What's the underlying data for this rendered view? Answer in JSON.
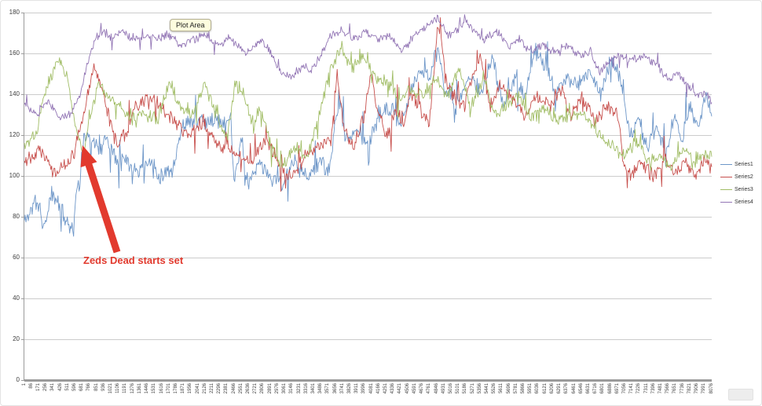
{
  "tooltip": {
    "label": "Plot Area"
  },
  "annotation": {
    "text": "Zeds Dead starts set",
    "color": "#e23a2e"
  },
  "axis_color": "#9b9b9b",
  "grid_color": "#cccccc",
  "chart_data": {
    "type": "line",
    "title": "",
    "xlabel": "",
    "ylabel": "",
    "ylim": [
      0,
      180
    ],
    "yticks": [
      0,
      20,
      40,
      60,
      80,
      100,
      120,
      140,
      160,
      180
    ],
    "xlim": [
      1,
      8076
    ],
    "xticks": [
      "1",
      "86",
      "171",
      "256",
      "341",
      "426",
      "511",
      "596",
      "681",
      "766",
      "851",
      "936",
      "1021",
      "1106",
      "1191",
      "1276",
      "1361",
      "1446",
      "1531",
      "1616",
      "1701",
      "1786",
      "1871",
      "1956",
      "2041",
      "2126",
      "2211",
      "2296",
      "2381",
      "2466",
      "2551",
      "2636",
      "2721",
      "2806",
      "2891",
      "2976",
      "3061",
      "3146",
      "3231",
      "3316",
      "3401",
      "3486",
      "3571",
      "3656",
      "3741",
      "3826",
      "3911",
      "3996",
      "4081",
      "4166",
      "4251",
      "4336",
      "4421",
      "4506",
      "4591",
      "4676",
      "4761",
      "4846",
      "4931",
      "5016",
      "5101",
      "5186",
      "5271",
      "5356",
      "5441",
      "5526",
      "5611",
      "5696",
      "5781",
      "5866",
      "5951",
      "6036",
      "6121",
      "6206",
      "6291",
      "6376",
      "6461",
      "6546",
      "6631",
      "6716",
      "6801",
      "6886",
      "6971",
      "7056",
      "7141",
      "7226",
      "7311",
      "7396",
      "7481",
      "7566",
      "7651",
      "7736",
      "7821",
      "7906",
      "7991",
      "8076"
    ],
    "grid": "horizontal",
    "legend_position": "right",
    "series": [
      {
        "name": "Series1",
        "color": "#6d96c8",
        "noise": 5,
        "spike": 13,
        "spike_p": 0.08,
        "seed": 11,
        "keypoints": [
          [
            1,
            78
          ],
          [
            139,
            88
          ],
          [
            232,
            75
          ],
          [
            324,
            92
          ],
          [
            416,
            85
          ],
          [
            509,
            78
          ],
          [
            582,
            73
          ],
          [
            619,
            98
          ],
          [
            656,
            93
          ],
          [
            675,
            113
          ],
          [
            702,
            121
          ],
          [
            785,
            117
          ],
          [
            878,
            112
          ],
          [
            970,
            119
          ],
          [
            1062,
            110
          ],
          [
            1201,
            107
          ],
          [
            1339,
            103
          ],
          [
            1478,
            107
          ],
          [
            1616,
            100
          ],
          [
            1754,
            104
          ],
          [
            1865,
            126
          ],
          [
            2197,
            127
          ],
          [
            2428,
            127
          ],
          [
            2465,
            98
          ],
          [
            2539,
            116
          ],
          [
            2631,
            96
          ],
          [
            2770,
            106
          ],
          [
            2908,
            99
          ],
          [
            3046,
            96
          ],
          [
            3185,
            107
          ],
          [
            3323,
            99
          ],
          [
            3462,
            107
          ],
          [
            3582,
            102
          ],
          [
            3692,
            138
          ],
          [
            3803,
            117
          ],
          [
            3923,
            124
          ],
          [
            4043,
            114
          ],
          [
            4172,
            129
          ],
          [
            4311,
            133
          ],
          [
            4412,
            124
          ],
          [
            4523,
            139
          ],
          [
            4634,
            152
          ],
          [
            4754,
            148
          ],
          [
            4864,
            162
          ],
          [
            4957,
            139
          ],
          [
            5077,
            134
          ],
          [
            5243,
            149
          ],
          [
            5372,
            139
          ],
          [
            5492,
            158
          ],
          [
            5631,
            134
          ],
          [
            5769,
            148
          ],
          [
            5880,
            139
          ],
          [
            6000,
            161
          ],
          [
            6138,
            153
          ],
          [
            6240,
            139
          ],
          [
            6369,
            149
          ],
          [
            6507,
            144
          ],
          [
            6646,
            153
          ],
          [
            6766,
            139
          ],
          [
            6877,
            156
          ],
          [
            6997,
            149
          ],
          [
            7107,
            119
          ],
          [
            7218,
            129
          ],
          [
            7310,
            114
          ],
          [
            7430,
            124
          ],
          [
            7541,
            110
          ],
          [
            7633,
            129
          ],
          [
            7726,
            119
          ],
          [
            7818,
            133
          ],
          [
            7919,
            124
          ],
          [
            8002,
            138
          ],
          [
            8076,
            132
          ]
        ]
      },
      {
        "name": "Series2",
        "color": "#c74f4c",
        "noise": 4.5,
        "spike": 11,
        "spike_p": 0.07,
        "seed": 22,
        "keypoints": [
          [
            1,
            108
          ],
          [
            186,
            114
          ],
          [
            370,
            100
          ],
          [
            555,
            110
          ],
          [
            647,
            120
          ],
          [
            739,
            140
          ],
          [
            832,
            154
          ],
          [
            924,
            140
          ],
          [
            1016,
            125
          ],
          [
            1108,
            114
          ],
          [
            1201,
            122
          ],
          [
            1311,
            135
          ],
          [
            1431,
            138
          ],
          [
            1570,
            135
          ],
          [
            1754,
            127
          ],
          [
            1939,
            119
          ],
          [
            2105,
            127
          ],
          [
            2290,
            114
          ],
          [
            2474,
            111
          ],
          [
            2659,
            107
          ],
          [
            2843,
            117
          ],
          [
            3028,
            104
          ],
          [
            3166,
            100
          ],
          [
            3323,
            111
          ],
          [
            3462,
            114
          ],
          [
            3600,
            117
          ],
          [
            3674,
            152
          ],
          [
            3748,
            124
          ],
          [
            3877,
            114
          ],
          [
            3988,
            129
          ],
          [
            4071,
            152
          ],
          [
            4163,
            129
          ],
          [
            4265,
            119
          ],
          [
            4366,
            134
          ],
          [
            4449,
            124
          ],
          [
            4541,
            139
          ],
          [
            4643,
            134
          ],
          [
            4754,
            124
          ],
          [
            4864,
            176
          ],
          [
            4947,
            148
          ],
          [
            5049,
            139
          ],
          [
            5169,
            134
          ],
          [
            5270,
            149
          ],
          [
            5363,
            158
          ],
          [
            5464,
            134
          ],
          [
            5593,
            144
          ],
          [
            5732,
            139
          ],
          [
            5870,
            129
          ],
          [
            6009,
            139
          ],
          [
            6184,
            134
          ],
          [
            6295,
            144
          ],
          [
            6424,
            129
          ],
          [
            6562,
            139
          ],
          [
            6701,
            127
          ],
          [
            6839,
            134
          ],
          [
            6978,
            129
          ],
          [
            7033,
            107
          ],
          [
            7116,
            100
          ],
          [
            7255,
            107
          ],
          [
            7393,
            100
          ],
          [
            7531,
            109
          ],
          [
            7633,
            101
          ],
          [
            7762,
            107
          ],
          [
            7900,
            100
          ],
          [
            7993,
            109
          ],
          [
            8076,
            103
          ]
        ]
      },
      {
        "name": "Series3",
        "color": "#a1bd66",
        "noise": 4,
        "spike": 9,
        "spike_p": 0.06,
        "seed": 33,
        "keypoints": [
          [
            1,
            115
          ],
          [
            139,
            120
          ],
          [
            259,
            143
          ],
          [
            398,
            158
          ],
          [
            509,
            148
          ],
          [
            601,
            124
          ],
          [
            693,
            112
          ],
          [
            785,
            129
          ],
          [
            878,
            146
          ],
          [
            988,
            139
          ],
          [
            1108,
            134
          ],
          [
            1247,
            127
          ],
          [
            1385,
            131
          ],
          [
            1570,
            127
          ],
          [
            1699,
            146
          ],
          [
            1837,
            134
          ],
          [
            1976,
            129
          ],
          [
            2114,
            146
          ],
          [
            2253,
            129
          ],
          [
            2382,
            119
          ],
          [
            2483,
            146
          ],
          [
            2585,
            139
          ],
          [
            2686,
            124
          ],
          [
            2788,
            134
          ],
          [
            2908,
            112
          ],
          [
            3037,
            104
          ],
          [
            3175,
            114
          ],
          [
            3314,
            109
          ],
          [
            3452,
            127
          ],
          [
            3591,
            152
          ],
          [
            3720,
            163
          ],
          [
            3858,
            153
          ],
          [
            3997,
            158
          ],
          [
            4135,
            148
          ],
          [
            4274,
            146
          ],
          [
            4412,
            137
          ],
          [
            4551,
            143
          ],
          [
            4689,
            139
          ],
          [
            4827,
            148
          ],
          [
            4966,
            139
          ],
          [
            5114,
            153
          ],
          [
            5252,
            134
          ],
          [
            5391,
            148
          ],
          [
            5529,
            129
          ],
          [
            5668,
            134
          ],
          [
            5806,
            139
          ],
          [
            5944,
            129
          ],
          [
            6083,
            134
          ],
          [
            6221,
            129
          ],
          [
            6360,
            127
          ],
          [
            6498,
            131
          ],
          [
            6637,
            127
          ],
          [
            6775,
            119
          ],
          [
            6914,
            114
          ],
          [
            7052,
            109
          ],
          [
            7190,
            117
          ],
          [
            7329,
            107
          ],
          [
            7467,
            111
          ],
          [
            7606,
            104
          ],
          [
            7744,
            114
          ],
          [
            7883,
            107
          ],
          [
            7984,
            111
          ],
          [
            8076,
            109
          ]
        ]
      },
      {
        "name": "Series4",
        "color": "#9376b5",
        "noise": 2.5,
        "spike": 6,
        "spike_p": 0.05,
        "seed": 44,
        "keypoints": [
          [
            1,
            135
          ],
          [
            139,
            130
          ],
          [
            278,
            137
          ],
          [
            416,
            128
          ],
          [
            555,
            131
          ],
          [
            647,
            139
          ],
          [
            739,
            154
          ],
          [
            832,
            167
          ],
          [
            924,
            171
          ],
          [
            1035,
            167
          ],
          [
            1155,
            171
          ],
          [
            1293,
            167
          ],
          [
            1431,
            169
          ],
          [
            1570,
            167
          ],
          [
            1708,
            169
          ],
          [
            1847,
            164
          ],
          [
            1985,
            167
          ],
          [
            2123,
            169
          ],
          [
            2262,
            164
          ],
          [
            2400,
            167
          ],
          [
            2511,
            164
          ],
          [
            2603,
            159
          ],
          [
            2696,
            164
          ],
          [
            2788,
            167
          ],
          [
            2880,
            161
          ],
          [
            3000,
            151
          ],
          [
            3138,
            149
          ],
          [
            3277,
            154
          ],
          [
            3369,
            151
          ],
          [
            3480,
            159
          ],
          [
            3600,
            169
          ],
          [
            3738,
            171
          ],
          [
            3877,
            167
          ],
          [
            4015,
            171
          ],
          [
            4154,
            167
          ],
          [
            4292,
            169
          ],
          [
            4431,
            161
          ],
          [
            4532,
            167
          ],
          [
            4634,
            171
          ],
          [
            4744,
            174
          ],
          [
            4855,
            177
          ],
          [
            4975,
            169
          ],
          [
            5086,
            171
          ],
          [
            5178,
            177
          ],
          [
            5280,
            171
          ],
          [
            5409,
            167
          ],
          [
            5547,
            171
          ],
          [
            5686,
            164
          ],
          [
            5824,
            167
          ],
          [
            5963,
            161
          ],
          [
            6101,
            164
          ],
          [
            6240,
            161
          ],
          [
            6378,
            164
          ],
          [
            6517,
            159
          ],
          [
            6655,
            161
          ],
          [
            6757,
            151
          ],
          [
            6886,
            157
          ],
          [
            7015,
            159
          ],
          [
            7153,
            157
          ],
          [
            7292,
            159
          ],
          [
            7430,
            154
          ],
          [
            7559,
            147
          ],
          [
            7670,
            151
          ],
          [
            7808,
            144
          ],
          [
            7910,
            139
          ],
          [
            8002,
            141
          ],
          [
            8076,
            136
          ]
        ]
      }
    ]
  }
}
